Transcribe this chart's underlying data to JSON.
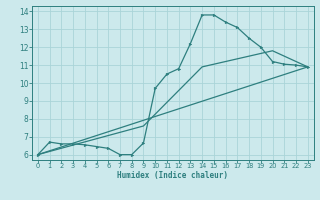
{
  "xlabel": "Humidex (Indice chaleur)",
  "xlim": [
    -0.5,
    23.5
  ],
  "ylim": [
    5.7,
    14.3
  ],
  "xticks": [
    0,
    1,
    2,
    3,
    4,
    5,
    6,
    7,
    8,
    9,
    10,
    11,
    12,
    13,
    14,
    15,
    16,
    17,
    18,
    19,
    20,
    21,
    22,
    23
  ],
  "yticks": [
    6,
    7,
    8,
    9,
    10,
    11,
    12,
    13,
    14
  ],
  "bg_color": "#cce9ec",
  "grid_color": "#aad4d8",
  "line_color": "#2e7f7f",
  "line1_x": [
    0,
    1,
    2,
    3,
    4,
    5,
    6,
    7,
    8,
    9,
    10,
    11,
    12,
    13,
    14,
    15,
    16,
    17,
    18,
    19,
    20,
    21,
    22,
    23
  ],
  "line1_y": [
    6.0,
    6.7,
    6.6,
    6.6,
    6.55,
    6.45,
    6.35,
    6.0,
    6.0,
    6.65,
    9.7,
    10.5,
    10.8,
    12.2,
    13.8,
    13.8,
    13.4,
    13.1,
    12.5,
    12.0,
    11.2,
    11.05,
    11.0,
    10.9
  ],
  "line2_x": [
    0,
    23
  ],
  "line2_y": [
    6.0,
    10.9
  ],
  "line3_x": [
    0,
    9,
    14,
    20,
    23
  ],
  "line3_y": [
    6.0,
    7.6,
    10.9,
    11.8,
    10.9
  ]
}
